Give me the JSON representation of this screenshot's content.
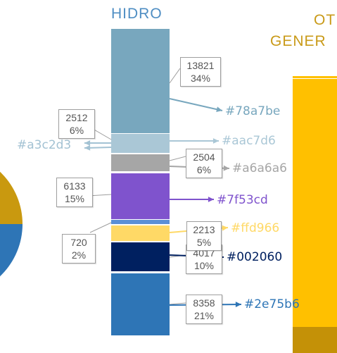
{
  "titles": {
    "hidro": "HIDRO",
    "other_line1": "OT",
    "other_line2": "GENER"
  },
  "colors": {
    "hidro_title": "#4f8ec3",
    "other_title": "#c99a18",
    "callout_border": "#9e9e9e",
    "pie_gold": "#c9990f",
    "pie_blue": "#2e75b6",
    "other_bar": "#ffc000",
    "other_bar_base": "#c49107"
  },
  "segments": [
    {
      "name": "seg-steel-blue",
      "value": 13821,
      "percent": "34%",
      "color": "#78a7be"
    },
    {
      "name": "seg-light-blue",
      "value": 2512,
      "percent": "6%",
      "color": "#aac7d6"
    },
    {
      "name": "seg-gray",
      "value": 2504,
      "percent": "6%",
      "color": "#a6a6a6"
    },
    {
      "name": "seg-purple",
      "value": 6133,
      "percent": "15%",
      "color": "#7f53cd"
    },
    {
      "name": "seg-thin-blue",
      "value": null,
      "percent": "",
      "color": "#5b8fd6"
    },
    {
      "name": "seg-yellow",
      "value": 2213,
      "percent": "5%",
      "color": "#ffd966"
    },
    {
      "name": "seg-navy",
      "value": 4017,
      "percent": "10%",
      "color": "#002060"
    },
    {
      "name": "seg-blue",
      "value": 8358,
      "percent": "21%",
      "color": "#2e75b6"
    }
  ],
  "callouts": [
    {
      "value": "13821",
      "percent": "34%"
    },
    {
      "value": "2512",
      "percent": "6%"
    },
    {
      "value": "2504",
      "percent": "6%"
    },
    {
      "value": "6133",
      "percent": "15%"
    },
    {
      "value": "720",
      "percent": "2%"
    },
    {
      "value": "2213",
      "percent": "5%"
    },
    {
      "value": "4017",
      "percent": "10%"
    },
    {
      "value": "8358",
      "percent": "21%"
    }
  ],
  "hex_labels": [
    {
      "text": "#78a7be",
      "color": "#78a7be"
    },
    {
      "text": "#aac7d6",
      "color": "#aac7d6"
    },
    {
      "text": "#a3c2d3",
      "color": "#a3c2d3"
    },
    {
      "text": "#a6a6a6",
      "color": "#a6a6a6"
    },
    {
      "text": "#7f53cd",
      "color": "#7f53cd"
    },
    {
      "text": "#ffd966",
      "color": "#ffd966"
    },
    {
      "text": "#002060",
      "color": "#002060"
    },
    {
      "text": "#2e75b6",
      "color": "#2e75b6"
    }
  ]
}
